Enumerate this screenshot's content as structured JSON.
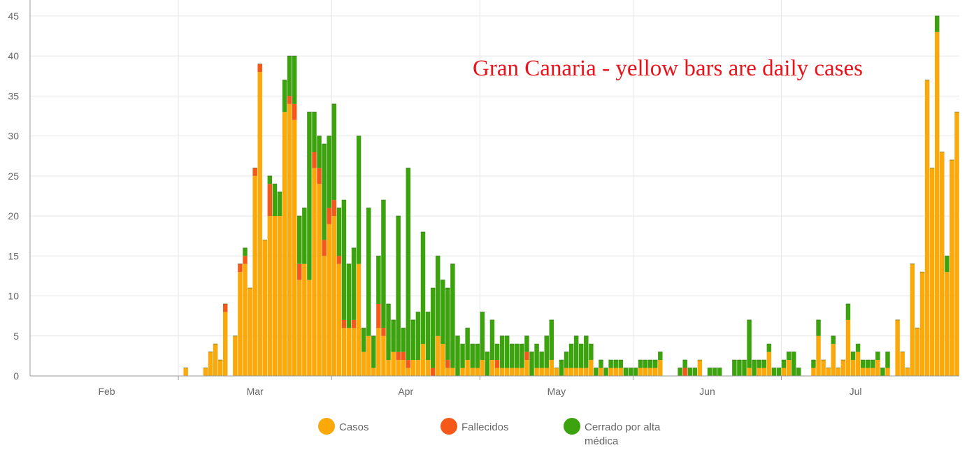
{
  "annotation": "Gran Canaria - yellow bars are daily cases",
  "legend": [
    {
      "label": "Casos",
      "color": "#faa80a"
    },
    {
      "label": "Fallecidos",
      "color": "#f4591a"
    },
    {
      "label": "Cerrado por alta médica",
      "color": "#3ca20e"
    }
  ],
  "chart_data": {
    "type": "bar",
    "stacked": true,
    "title": "",
    "xlabel": "",
    "ylabel": "",
    "ylim": [
      0,
      47
    ],
    "y_ticks": [
      0,
      5,
      10,
      15,
      20,
      25,
      30,
      35,
      40,
      45
    ],
    "x_start": "2020-01-31",
    "x_end": "2020-07-26",
    "month_ticks": [
      {
        "label": "Feb",
        "date": "2020-02-01"
      },
      {
        "label": "Mar",
        "date": "2020-03-01"
      },
      {
        "label": "Apr",
        "date": "2020-04-01"
      },
      {
        "label": "May",
        "date": "2020-05-01"
      },
      {
        "label": "Jun",
        "date": "2020-06-01"
      },
      {
        "label": "Jul",
        "date": "2020-07-01"
      }
    ],
    "grid": true,
    "legend_position": "bottom",
    "series": [
      {
        "name": "Casos",
        "color": "#faa80a",
        "values": [
          0,
          0,
          0,
          0,
          0,
          0,
          0,
          0,
          0,
          0,
          0,
          0,
          0,
          0,
          0,
          0,
          0,
          0,
          0,
          0,
          0,
          0,
          0,
          0,
          0,
          0,
          0,
          0,
          0,
          0,
          0,
          1,
          0,
          0,
          0,
          1,
          3,
          4,
          2,
          8,
          0,
          5,
          13,
          14,
          11,
          25,
          38,
          17,
          20,
          20,
          20,
          33,
          34,
          32,
          12,
          14,
          12,
          26,
          24,
          15,
          19,
          20,
          14,
          6,
          6,
          6,
          14,
          3,
          5,
          1,
          6,
          5,
          2,
          3,
          2,
          2,
          1,
          2,
          2,
          4,
          2,
          0,
          5,
          4,
          1,
          1,
          0,
          1,
          2,
          1,
          1,
          2,
          0,
          2,
          1,
          1,
          1,
          1,
          1,
          1,
          2,
          0,
          1,
          1,
          1,
          2,
          1,
          0,
          1,
          1,
          1,
          1,
          1,
          2,
          0,
          1,
          0,
          1,
          1,
          1,
          0,
          0,
          0,
          1,
          1,
          1,
          1,
          2,
          0,
          0,
          0,
          0,
          0,
          0,
          0,
          2,
          0,
          0,
          0,
          0,
          0,
          0,
          0,
          0,
          0,
          1,
          0,
          1,
          1,
          3,
          0,
          0,
          1,
          2,
          0,
          0,
          0,
          0,
          1,
          5,
          2,
          1,
          4,
          1,
          2,
          7,
          2,
          3,
          1,
          1,
          1,
          2,
          0,
          1,
          0,
          7,
          3,
          1,
          14,
          6,
          13,
          37,
          26,
          43,
          28,
          13,
          27,
          33
        ]
      },
      {
        "name": "Fallecidos",
        "color": "#f4591a",
        "values": [
          0,
          0,
          0,
          0,
          0,
          0,
          0,
          0,
          0,
          0,
          0,
          0,
          0,
          0,
          0,
          0,
          0,
          0,
          0,
          0,
          0,
          0,
          0,
          0,
          0,
          0,
          0,
          0,
          0,
          0,
          0,
          0,
          0,
          0,
          0,
          0,
          0,
          0,
          0,
          1,
          0,
          0,
          1,
          1,
          0,
          1,
          1,
          0,
          4,
          0,
          0,
          0,
          1,
          2,
          2,
          0,
          0,
          2,
          2,
          2,
          2,
          2,
          1,
          1,
          0,
          1,
          0,
          0,
          0,
          0,
          3,
          1,
          0,
          0,
          1,
          1,
          1,
          0,
          0,
          0,
          0,
          1,
          0,
          0,
          1,
          0,
          0,
          0,
          0,
          0,
          0,
          0,
          0,
          0,
          1,
          0,
          0,
          0,
          0,
          0,
          1,
          0,
          0,
          0,
          0,
          0,
          0,
          0,
          0,
          0,
          0,
          0,
          0,
          0,
          0,
          0,
          0,
          0,
          0,
          0,
          0,
          0,
          0,
          0,
          0,
          0,
          0,
          0,
          0,
          0,
          0,
          0,
          1,
          0,
          0,
          0,
          0,
          0,
          0,
          0,
          0,
          0,
          0,
          0,
          0,
          0,
          0,
          0,
          0,
          0,
          0,
          0,
          0,
          0,
          0,
          0,
          0,
          0,
          0,
          0,
          0,
          0,
          0,
          0,
          0,
          0,
          0,
          0,
          0,
          0,
          0,
          0,
          0,
          0,
          0,
          0,
          0,
          0,
          0,
          0,
          0,
          0,
          0,
          0,
          0,
          0,
          0,
          0
        ]
      },
      {
        "name": "Cerrado por alta médica",
        "color": "#3ca20e",
        "values": [
          0,
          0,
          0,
          0,
          0,
          0,
          0,
          0,
          0,
          0,
          0,
          0,
          0,
          0,
          0,
          0,
          0,
          0,
          0,
          0,
          0,
          0,
          0,
          0,
          0,
          0,
          0,
          0,
          0,
          0,
          0,
          0,
          0,
          0,
          0,
          0,
          0,
          0,
          0,
          0,
          0,
          0,
          0,
          1,
          0,
          0,
          0,
          0,
          1,
          4,
          3,
          4,
          5,
          6,
          6,
          7,
          21,
          5,
          4,
          12,
          9,
          12,
          6,
          15,
          8,
          9,
          16,
          3,
          16,
          4,
          6,
          16,
          7,
          4,
          17,
          3,
          24,
          5,
          6,
          14,
          6,
          10,
          10,
          8,
          9,
          13,
          5,
          3,
          4,
          3,
          3,
          6,
          3,
          5,
          2,
          4,
          4,
          3,
          3,
          3,
          2,
          3,
          3,
          2,
          4,
          5,
          0,
          2,
          2,
          3,
          4,
          3,
          4,
          2,
          1,
          1,
          1,
          1,
          1,
          1,
          1,
          1,
          1,
          1,
          1,
          1,
          1,
          1,
          0,
          0,
          0,
          1,
          1,
          1,
          1,
          0,
          0,
          1,
          1,
          1,
          0,
          0,
          2,
          2,
          2,
          6,
          2,
          1,
          1,
          1,
          1,
          1,
          1,
          1,
          3,
          1,
          0,
          0,
          1,
          2,
          0,
          0,
          1,
          0,
          0,
          2,
          1,
          1,
          1,
          1,
          1,
          1,
          1,
          2,
          0,
          0,
          0,
          0,
          0,
          0,
          0,
          0,
          0,
          2,
          0,
          2,
          0,
          0,
          0,
          0,
          0,
          0,
          0,
          0,
          0,
          0
        ]
      }
    ]
  }
}
